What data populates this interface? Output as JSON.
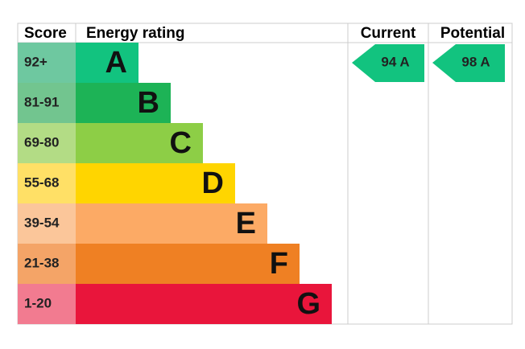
{
  "header": {
    "score": "Score",
    "rating": "Energy rating",
    "current": "Current",
    "potential": "Potential"
  },
  "rows": [
    {
      "score": "92+",
      "letter": "A"
    },
    {
      "score": "81-91",
      "letter": "B"
    },
    {
      "score": "69-80",
      "letter": "C"
    },
    {
      "score": "55-68",
      "letter": "D"
    },
    {
      "score": "39-54",
      "letter": "E"
    },
    {
      "score": "21-38",
      "letter": "F"
    },
    {
      "score": "1-20",
      "letter": "G"
    }
  ],
  "current": "94 A",
  "potential": "98 A"
}
